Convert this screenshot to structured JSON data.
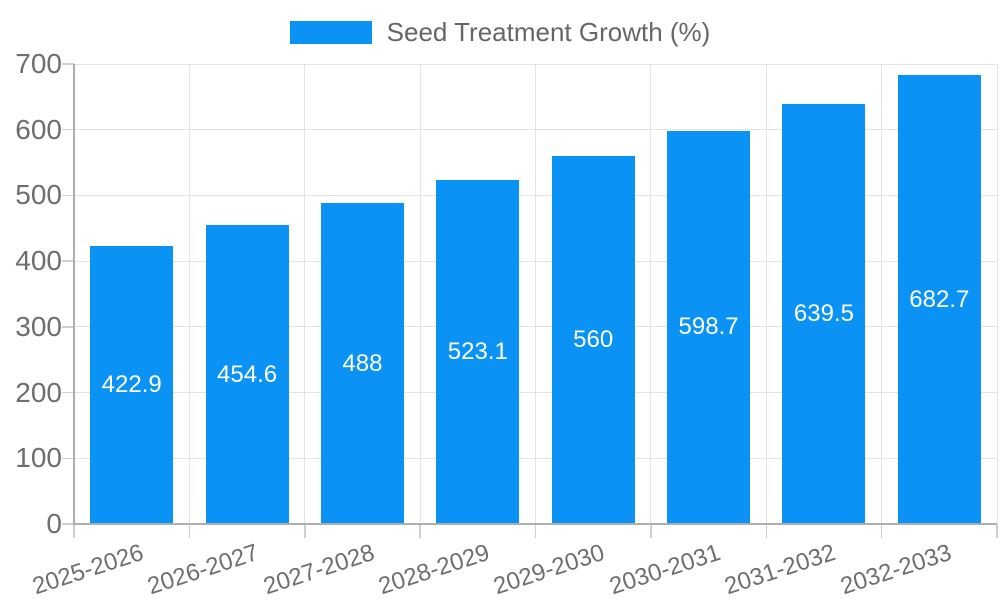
{
  "chart_data": {
    "type": "bar",
    "title": "Seed Treatment Growth (%)",
    "categories": [
      "2025-2026",
      "2026-2027",
      "2027-2028",
      "2028-2029",
      "2029-2030",
      "2030-2031",
      "2031-2032",
      "2032-2033"
    ],
    "values": [
      422.9,
      454.6,
      488,
      523.1,
      560,
      598.7,
      639.5,
      682.7
    ],
    "bar_labels": [
      "422.9",
      "454.6",
      "488",
      "523.1",
      "560",
      "598.7",
      "639.5",
      "682.7"
    ],
    "xlabel": "",
    "ylabel": "",
    "ylim": [
      0,
      700
    ],
    "yticks": [
      0,
      100,
      200,
      300,
      400,
      500,
      600,
      700
    ],
    "grid": true,
    "legend_position": "top-center",
    "x_label_rotation_deg": -18,
    "colors": {
      "bar": "#0a92f5",
      "bar_label": "#ffffff",
      "axis_text": "#6e6e6e",
      "grid_line": "#e3e3e3",
      "tick_mark": "#cfcfcf",
      "axis_line": "#aeaeae",
      "legend_text": "#666666",
      "background": "#ffffff"
    }
  }
}
